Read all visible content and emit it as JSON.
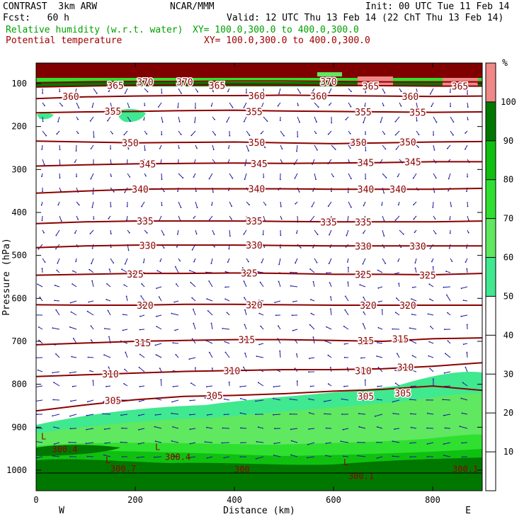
{
  "header": {
    "model": "CONTRAST  3km ARW",
    "center": "NCAR/MMM",
    "init": "Init: 00 UTC Tue 11 Feb 14",
    "fcst": "Fcst:   60 h",
    "valid": "Valid: 12 UTC Thu 13 Feb 14 (22 ChT Thu 13 Feb 14)",
    "field1": "Relative humidity (w.r.t. water)",
    "field1_xy": "XY= 100.0,300.0 to 400.0,300.0",
    "field2": "Potential temperature",
    "field2_xy": "XY= 100.0,300.0 to 400.0,300.0"
  },
  "chart_data": {
    "type": "cross-section contour",
    "xlabel": "Distance (km)",
    "ylabel": "Pressure (hPa)",
    "xlim": [
      0,
      900
    ],
    "ylim": [
      1000,
      50
    ],
    "xticks": [
      0,
      200,
      400,
      600,
      800
    ],
    "yticks": [
      100,
      200,
      300,
      400,
      500,
      600,
      700,
      800,
      900,
      1000
    ],
    "left_end_label": "W",
    "right_end_label": "E",
    "colorbar": {
      "unit": "%",
      "levels": [
        10,
        20,
        30,
        40,
        50,
        60,
        70,
        80,
        90,
        100
      ],
      "bands": [
        {
          "from": 50,
          "to": 60,
          "color": "#40e890"
        },
        {
          "from": 60,
          "to": 70,
          "color": "#60e860"
        },
        {
          "from": 70,
          "to": 80,
          "color": "#30e030"
        },
        {
          "from": 80,
          "to": 90,
          "color": "#10c010"
        },
        {
          "from": 90,
          "to": 100,
          "color": "#007800"
        },
        {
          "from": 100,
          "to": 110,
          "color": "#f08888"
        }
      ]
    },
    "theta_contours": [
      {
        "value": 305,
        "p": [
          862,
          848,
          836,
          828,
          826,
          822,
          816,
          812,
          804,
          814
        ],
        "labels": [
          [
            155,
            838
          ],
          [
            360,
            826
          ],
          [
            665,
            828
          ],
          [
            740,
            820
          ]
        ]
      },
      {
        "value": 310,
        "p": [
          782,
          778,
          774,
          770,
          768,
          766,
          766,
          764,
          758,
          750
        ],
        "labels": [
          [
            150,
            776
          ],
          [
            395,
            768
          ],
          [
            660,
            768
          ],
          [
            745,
            760
          ]
        ]
      },
      {
        "value": 315,
        "p": [
          708,
          704,
          700,
          698,
          696,
          696,
          698,
          700,
          694,
          692
        ],
        "labels": [
          [
            215,
            703
          ],
          [
            425,
            696
          ],
          [
            665,
            698
          ],
          [
            735,
            694
          ]
        ]
      },
      {
        "value": 320,
        "p": [
          615,
          616,
          616,
          614,
          614,
          615,
          616,
          616,
          616,
          616
        ],
        "labels": [
          [
            220,
            616
          ],
          [
            440,
            615
          ],
          [
            670,
            616
          ],
          [
            750,
            616
          ]
        ]
      },
      {
        "value": 325,
        "p": [
          546,
          544,
          542,
          542,
          541,
          542,
          544,
          544,
          545,
          542
        ],
        "labels": [
          [
            200,
            543
          ],
          [
            430,
            541
          ],
          [
            660,
            544
          ],
          [
            790,
            546
          ]
        ]
      },
      {
        "value": 330,
        "p": [
          482,
          478,
          476,
          476,
          476,
          477,
          478,
          478,
          478,
          478
        ],
        "labels": [
          [
            225,
            477
          ],
          [
            440,
            476
          ],
          [
            660,
            478
          ],
          [
            770,
            478
          ]
        ]
      },
      {
        "value": 335,
        "p": [
          426,
          422,
          420,
          420,
          420,
          421,
          422,
          422,
          422,
          420
        ],
        "labels": [
          [
            220,
            420
          ],
          [
            440,
            420
          ],
          [
            590,
            422
          ],
          [
            660,
            422
          ]
        ]
      },
      {
        "value": 340,
        "p": [
          355,
          350,
          346,
          345,
          345,
          345,
          346,
          346,
          346,
          344
        ],
        "labels": [
          [
            210,
            346
          ],
          [
            445,
            345
          ],
          [
            665,
            346
          ],
          [
            730,
            346
          ]
        ]
      },
      {
        "value": 345,
        "p": [
          292,
          289,
          287,
          286,
          285,
          286,
          285,
          284,
          282,
          282
        ],
        "labels": [
          [
            225,
            287
          ],
          [
            450,
            286
          ],
          [
            665,
            284
          ],
          [
            760,
            282
          ]
        ]
      },
      {
        "value": 350,
        "p": [
          234,
          236,
          238,
          237,
          236,
          238,
          240,
          238,
          236,
          235
        ],
        "labels": [
          [
            190,
            238
          ],
          [
            445,
            237
          ],
          [
            650,
            237
          ],
          [
            750,
            236
          ]
        ]
      },
      {
        "value": 355,
        "p": [
          168,
          166,
          165,
          163,
          162,
          164,
          165,
          166,
          167,
          166
        ],
        "labels": [
          [
            155,
            164
          ],
          [
            440,
            165
          ],
          [
            660,
            166
          ],
          [
            770,
            167
          ]
        ]
      },
      {
        "value": 360,
        "p": [
          135,
          131,
          129,
          128,
          128,
          127,
          128,
          129,
          130,
          129
        ],
        "labels": [
          [
            70,
            130
          ],
          [
            445,
            128
          ],
          [
            570,
            129
          ],
          [
            755,
            130
          ]
        ]
      },
      {
        "value": 365,
        "p": [
          108,
          106,
          104,
          103,
          102,
          103,
          104,
          105,
          106,
          106
        ],
        "labels": [
          [
            160,
            104
          ],
          [
            365,
            104
          ],
          [
            675,
            106
          ],
          [
            855,
            106
          ]
        ]
      },
      {
        "value": 370,
        "p": [
          98,
          96,
          95,
          95,
          94,
          94,
          95,
          96,
          96,
          96
        ],
        "labels": [
          [
            220,
            96
          ],
          [
            300,
            96
          ],
          [
            590,
            95
          ]
        ]
      }
    ],
    "low_labels": [
      {
        "text": "L",
        "x": 10,
        "p": 920
      },
      {
        "text": "300.4",
        "x": 32,
        "p": 950
      },
      {
        "text": "L",
        "x": 240,
        "p": 945
      },
      {
        "text": "300.4",
        "x": 260,
        "p": 968
      },
      {
        "text": "L",
        "x": 140,
        "p": 975
      },
      {
        "text": "300.7",
        "x": 150,
        "p": 995
      },
      {
        "text": "300",
        "x": 400,
        "p": 997
      },
      {
        "text": "L",
        "x": 620,
        "p": 980
      },
      {
        "text": "300.1",
        "x": 630,
        "p": 1012
      },
      {
        "text": "300.1",
        "x": 840,
        "p": 996
      }
    ]
  }
}
